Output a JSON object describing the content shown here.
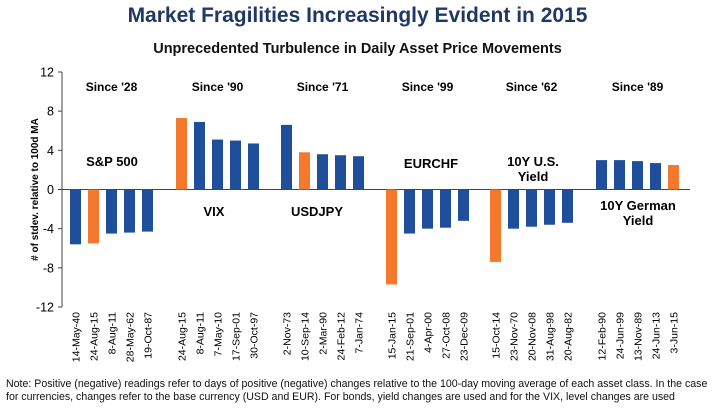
{
  "chart_data": {
    "type": "bar",
    "title": "Market Fragilities Increasingly Evident in 2015",
    "subtitle": "Unprecedented Turbulence in Daily Asset Price Movements",
    "ylabel": "# of stdev. relative to 100d MA",
    "ylim": [
      -12,
      12
    ],
    "yticks": [
      12,
      8,
      4,
      0,
      -4,
      -8,
      -12
    ],
    "grid": false,
    "colors": {
      "highlight": "#f4792d",
      "default": "#1f4e9a"
    },
    "groups": [
      {
        "asset": "S&P 500",
        "since": "Since '28",
        "bars": [
          {
            "date": "14-May-40",
            "value": -5.6,
            "highlight": false
          },
          {
            "date": "24-Aug-15",
            "value": -5.5,
            "highlight": true
          },
          {
            "date": "8-Aug-11",
            "value": -4.5,
            "highlight": false
          },
          {
            "date": "28-May-62",
            "value": -4.4,
            "highlight": false
          },
          {
            "date": "19-Oct-87",
            "value": -4.3,
            "highlight": false
          }
        ]
      },
      {
        "asset": "VIX",
        "since": "Since '90",
        "bars": [
          {
            "date": "24-Aug-15",
            "value": 7.3,
            "highlight": true
          },
          {
            "date": "8-Aug-11",
            "value": 6.9,
            "highlight": false
          },
          {
            "date": "7-May-10",
            "value": 5.1,
            "highlight": false
          },
          {
            "date": "17-Sep-01",
            "value": 5.0,
            "highlight": false
          },
          {
            "date": "30-Oct-97",
            "value": 4.7,
            "highlight": false
          }
        ]
      },
      {
        "asset": "USDJPY",
        "since": "Since '71",
        "bars": [
          {
            "date": "2-Nov-73",
            "value": 6.6,
            "highlight": false
          },
          {
            "date": "10-Sep-14",
            "value": 3.8,
            "highlight": true
          },
          {
            "date": "2-Mar-90",
            "value": 3.6,
            "highlight": false
          },
          {
            "date": "24-Feb-12",
            "value": 3.5,
            "highlight": false
          },
          {
            "date": "7-Jan-74",
            "value": 3.4,
            "highlight": false
          }
        ]
      },
      {
        "asset": "EURCHF",
        "since": "Since '99",
        "bars": [
          {
            "date": "15-Jan-15",
            "value": -9.7,
            "highlight": true
          },
          {
            "date": "21-Sep-01",
            "value": -4.5,
            "highlight": false
          },
          {
            "date": "4-Apr-00",
            "value": -4.0,
            "highlight": false
          },
          {
            "date": "27-Oct-08",
            "value": -3.9,
            "highlight": false
          },
          {
            "date": "23-Dec-09",
            "value": -3.2,
            "highlight": false
          }
        ]
      },
      {
        "asset": "10Y U.S. Yield",
        "since": "Since '62",
        "bars": [
          {
            "date": "15-Oct-14",
            "value": -7.4,
            "highlight": true
          },
          {
            "date": "23-Nov-70",
            "value": -4.0,
            "highlight": false
          },
          {
            "date": "20-Nov-08",
            "value": -3.8,
            "highlight": false
          },
          {
            "date": "31-Aug-98",
            "value": -3.6,
            "highlight": false
          },
          {
            "date": "20-Aug-82",
            "value": -3.4,
            "highlight": false
          }
        ]
      },
      {
        "asset": "10Y German Yield",
        "since": "Since '89",
        "bars": [
          {
            "date": "12-Feb-90",
            "value": 3.0,
            "highlight": false
          },
          {
            "date": "24-Jun-99",
            "value": 3.0,
            "highlight": false
          },
          {
            "date": "13-Nov-89",
            "value": 2.9,
            "highlight": false
          },
          {
            "date": "24-Jun-13",
            "value": 2.7,
            "highlight": false
          },
          {
            "date": "3-Jun-15",
            "value": 2.5,
            "highlight": true
          }
        ]
      }
    ]
  },
  "note": "Note: Positive (negative) readings refer to days of positive (negative) changes relative to the 100-day moving average of each asset class. In the case for currencies, changes refer to the base currency (USD and EUR). For bonds, yield changes are used and for the VIX, level changes are used"
}
